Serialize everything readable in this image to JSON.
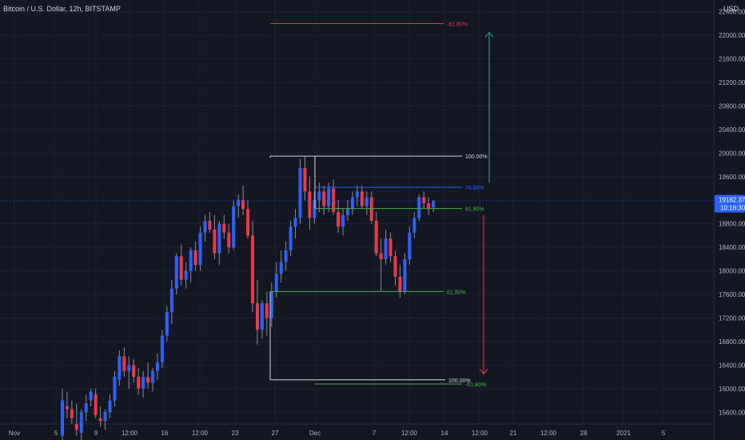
{
  "header": {
    "symbol_title": "Bitcoin / U.S. Dollar, 12h, BITSTAMP",
    "currency": "USD"
  },
  "price_badge": {
    "price": "19182.37",
    "countdown": "10:18:30",
    "color": "#2962ff"
  },
  "colors": {
    "up": "#2962ff",
    "down": "#f23645",
    "background": "#131722"
  },
  "chart_data": {
    "type": "candlestick",
    "title": "Bitcoin / U.S. Dollar, 12h, BITSTAMP",
    "ylim": [
      15400,
      22600
    ],
    "yticks": [
      "15600.00",
      "16000.00",
      "16400.00",
      "16800.00",
      "17200.00",
      "17600.00",
      "18000.00",
      "18400.00",
      "18800.00",
      "19200.00",
      "19600.00",
      "20000.00",
      "20400.00",
      "20800.00",
      "21200.00",
      "21600.00",
      "22000.00",
      "22400.00"
    ],
    "xticks": [
      "Nov",
      "5",
      "9",
      "12:00",
      "16",
      "12:00",
      "23",
      "27",
      "Dec",
      "7",
      "12:00",
      "14",
      "12:00",
      "21",
      "12:00",
      "28",
      "2021",
      "5"
    ],
    "grid": true,
    "candles": [
      {
        "o": 15200,
        "h": 16000,
        "l": 15100,
        "c": 15800
      },
      {
        "o": 15700,
        "h": 15950,
        "l": 15500,
        "c": 15650
      },
      {
        "o": 15650,
        "h": 15800,
        "l": 15400,
        "c": 15500
      },
      {
        "o": 15400,
        "h": 15750,
        "l": 15200,
        "c": 15300
      },
      {
        "o": 15250,
        "h": 15650,
        "l": 15100,
        "c": 15600
      },
      {
        "o": 15600,
        "h": 15900,
        "l": 15450,
        "c": 15750
      },
      {
        "o": 15800,
        "h": 16000,
        "l": 15700,
        "c": 15950
      },
      {
        "o": 15900,
        "h": 16000,
        "l": 15500,
        "c": 15550
      },
      {
        "o": 15500,
        "h": 15700,
        "l": 15350,
        "c": 15450
      },
      {
        "o": 15450,
        "h": 15650,
        "l": 15300,
        "c": 15600
      },
      {
        "o": 15600,
        "h": 15900,
        "l": 15500,
        "c": 15800
      },
      {
        "o": 15800,
        "h": 16300,
        "l": 15700,
        "c": 16200
      },
      {
        "o": 16150,
        "h": 16650,
        "l": 16050,
        "c": 16550
      },
      {
        "o": 16550,
        "h": 16700,
        "l": 16200,
        "c": 16300
      },
      {
        "o": 16300,
        "h": 16550,
        "l": 16000,
        "c": 16400
      },
      {
        "o": 16400,
        "h": 16500,
        "l": 16100,
        "c": 16200
      },
      {
        "o": 16200,
        "h": 16350,
        "l": 15900,
        "c": 16000
      },
      {
        "o": 16000,
        "h": 16300,
        "l": 15850,
        "c": 16200
      },
      {
        "o": 16200,
        "h": 16450,
        "l": 16000,
        "c": 16100
      },
      {
        "o": 16100,
        "h": 16350,
        "l": 15950,
        "c": 16300
      },
      {
        "o": 16300,
        "h": 16600,
        "l": 16150,
        "c": 16450
      },
      {
        "o": 16450,
        "h": 17000,
        "l": 16350,
        "c": 16900
      },
      {
        "o": 16900,
        "h": 17400,
        "l": 16800,
        "c": 17300
      },
      {
        "o": 17300,
        "h": 17850,
        "l": 17100,
        "c": 17700
      },
      {
        "o": 17700,
        "h": 18300,
        "l": 17600,
        "c": 18250
      },
      {
        "o": 18250,
        "h": 18450,
        "l": 17750,
        "c": 17850
      },
      {
        "o": 17850,
        "h": 18150,
        "l": 17700,
        "c": 18000
      },
      {
        "o": 18000,
        "h": 18400,
        "l": 17800,
        "c": 18350
      },
      {
        "o": 18350,
        "h": 18500,
        "l": 18000,
        "c": 18100
      },
      {
        "o": 18100,
        "h": 18750,
        "l": 18000,
        "c": 18650
      },
      {
        "o": 18650,
        "h": 18950,
        "l": 18500,
        "c": 18850
      },
      {
        "o": 18850,
        "h": 19000,
        "l": 18650,
        "c": 18700
      },
      {
        "o": 18700,
        "h": 18950,
        "l": 18200,
        "c": 18300
      },
      {
        "o": 18300,
        "h": 18850,
        "l": 18100,
        "c": 18800
      },
      {
        "o": 18800,
        "h": 18950,
        "l": 18550,
        "c": 18650
      },
      {
        "o": 18650,
        "h": 18800,
        "l": 18300,
        "c": 18400
      },
      {
        "o": 18400,
        "h": 19200,
        "l": 18350,
        "c": 19100
      },
      {
        "o": 19100,
        "h": 19300,
        "l": 18900,
        "c": 19200
      },
      {
        "o": 19200,
        "h": 19450,
        "l": 18950,
        "c": 19050
      },
      {
        "o": 19050,
        "h": 19200,
        "l": 18550,
        "c": 18600
      },
      {
        "o": 18600,
        "h": 18850,
        "l": 17300,
        "c": 17450
      },
      {
        "o": 17450,
        "h": 17850,
        "l": 16750,
        "c": 17000
      },
      {
        "o": 17000,
        "h": 17500,
        "l": 16850,
        "c": 17450
      },
      {
        "o": 17450,
        "h": 17650,
        "l": 16900,
        "c": 17200
      },
      {
        "o": 17200,
        "h": 17800,
        "l": 17050,
        "c": 17650
      },
      {
        "o": 17650,
        "h": 18150,
        "l": 17550,
        "c": 17950
      },
      {
        "o": 17950,
        "h": 18350,
        "l": 17800,
        "c": 18150
      },
      {
        "o": 18150,
        "h": 18500,
        "l": 18000,
        "c": 18350
      },
      {
        "o": 18350,
        "h": 18850,
        "l": 18250,
        "c": 18750
      },
      {
        "o": 18750,
        "h": 19050,
        "l": 18550,
        "c": 18900
      },
      {
        "o": 18900,
        "h": 19900,
        "l": 18800,
        "c": 19750
      },
      {
        "o": 19750,
        "h": 19950,
        "l": 19200,
        "c": 19350
      },
      {
        "o": 19350,
        "h": 19600,
        "l": 18700,
        "c": 18900
      },
      {
        "o": 18900,
        "h": 19350,
        "l": 18800,
        "c": 19200
      },
      {
        "o": 19200,
        "h": 19500,
        "l": 19000,
        "c": 19350
      },
      {
        "o": 19350,
        "h": 19450,
        "l": 18950,
        "c": 19100
      },
      {
        "o": 19100,
        "h": 19500,
        "l": 19000,
        "c": 19400
      },
      {
        "o": 19400,
        "h": 19550,
        "l": 18950,
        "c": 19000
      },
      {
        "o": 19000,
        "h": 19200,
        "l": 18650,
        "c": 18750
      },
      {
        "o": 18750,
        "h": 19050,
        "l": 18600,
        "c": 18950
      },
      {
        "o": 18950,
        "h": 19200,
        "l": 18850,
        "c": 19050
      },
      {
        "o": 19050,
        "h": 19350,
        "l": 18950,
        "c": 19250
      },
      {
        "o": 19250,
        "h": 19450,
        "l": 19100,
        "c": 19350
      },
      {
        "o": 19350,
        "h": 19450,
        "l": 19050,
        "c": 19100
      },
      {
        "o": 19100,
        "h": 19350,
        "l": 18950,
        "c": 19250
      },
      {
        "o": 19250,
        "h": 19350,
        "l": 18800,
        "c": 18850
      },
      {
        "o": 18850,
        "h": 19000,
        "l": 18250,
        "c": 18300
      },
      {
        "o": 18300,
        "h": 18550,
        "l": 17650,
        "c": 18200
      },
      {
        "o": 18200,
        "h": 18700,
        "l": 18100,
        "c": 18550
      },
      {
        "o": 18550,
        "h": 18650,
        "l": 18150,
        "c": 18250
      },
      {
        "o": 18250,
        "h": 18350,
        "l": 17750,
        "c": 17900
      },
      {
        "o": 17900,
        "h": 18100,
        "l": 17550,
        "c": 17650
      },
      {
        "o": 17650,
        "h": 18300,
        "l": 17600,
        "c": 18200
      },
      {
        "o": 18200,
        "h": 18750,
        "l": 18100,
        "c": 18650
      },
      {
        "o": 18650,
        "h": 19000,
        "l": 18550,
        "c": 18900
      },
      {
        "o": 18900,
        "h": 19300,
        "l": 18850,
        "c": 19250
      },
      {
        "o": 19250,
        "h": 19350,
        "l": 19050,
        "c": 19150
      },
      {
        "o": 19150,
        "h": 19250,
        "l": 18950,
        "c": 19050
      },
      {
        "o": 19080,
        "h": 19200,
        "l": 19000,
        "c": 19180
      }
    ],
    "fib_lines": [
      {
        "label": "-61.80%",
        "price": 22200,
        "color": "#f23645"
      },
      {
        "label": "100.00%",
        "price": 19950,
        "color": "#d1d4dc"
      },
      {
        "label": "78.60%",
        "price": 19420,
        "color": "#2962ff"
      },
      {
        "label": "61.80%",
        "price": 19060,
        "color": "#4caf50"
      },
      {
        "label": "61.80%",
        "price": 17650,
        "color": "#4caf50"
      },
      {
        "label": "100.00%",
        "price": 16150,
        "color": "#d1d4dc"
      },
      {
        "label": "-61.80%",
        "price": 16080,
        "color": "#4caf50"
      }
    ]
  }
}
